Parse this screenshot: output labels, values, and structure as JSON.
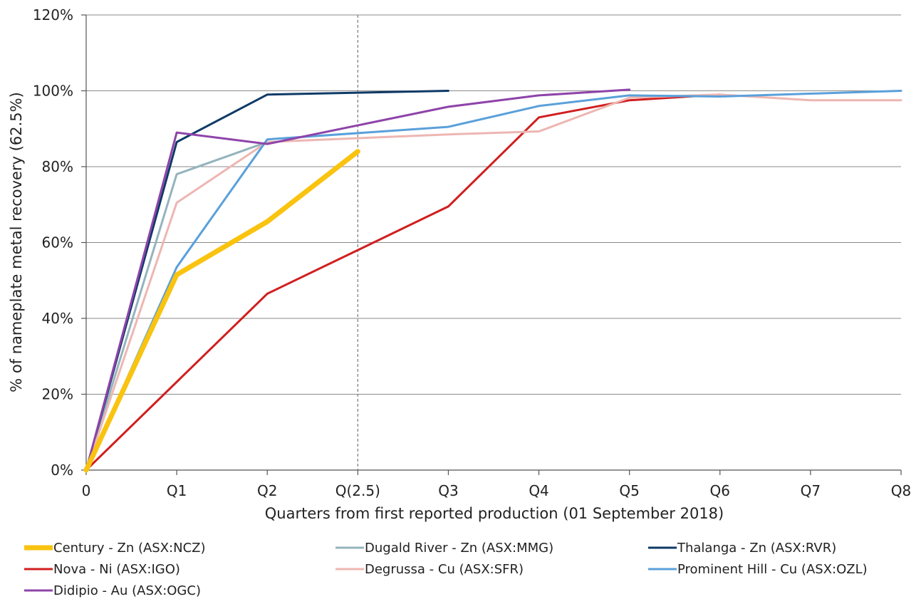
{
  "chart_data": {
    "type": "line",
    "xlabel": "Quarters from first reported production (01 September 2018)",
    "ylabel": "% of nameplate metal recovery (62.5%)",
    "ylim": [
      0,
      120
    ],
    "xlim": [
      0,
      9
    ],
    "y_ticks": [
      "0%",
      "20%",
      "40%",
      "60%",
      "80%",
      "100%",
      "120%"
    ],
    "y_tick_values": [
      0,
      20,
      40,
      60,
      80,
      100,
      120
    ],
    "x_ticks": [
      "0",
      "Q1",
      "Q2",
      "Q(2.5)",
      "Q3",
      "Q4",
      "Q5",
      "Q6",
      "Q7",
      "Q8"
    ],
    "x_tick_values": [
      0,
      1,
      2,
      3,
      4,
      5,
      6,
      7,
      8,
      9
    ],
    "grid": "horizontal",
    "reference_line": {
      "x": 3,
      "style": "dashed"
    },
    "legend_position": "bottom",
    "series": [
      {
        "name": "Century - Zn (ASX:NCZ)",
        "color": "#F9C30F",
        "width": 7,
        "points": [
          [
            0,
            0
          ],
          [
            1,
            51.5
          ],
          [
            2,
            65.5
          ],
          [
            3,
            84
          ]
        ]
      },
      {
        "name": "Dugald River - Zn (ASX:MMG)",
        "color": "#94B4BD",
        "width": 3,
        "points": [
          [
            0,
            0
          ],
          [
            1,
            78
          ],
          [
            2,
            86.5
          ]
        ]
      },
      {
        "name": "Thalanga - Zn (ASX:RVR)",
        "color": "#0D3A66",
        "width": 3,
        "points": [
          [
            0,
            0
          ],
          [
            1,
            86.5
          ],
          [
            2,
            99
          ],
          [
            4,
            100
          ]
        ]
      },
      {
        "name": "Nova - Ni (ASX:IGO)",
        "color": "#D01F1F",
        "width": 3,
        "points": [
          [
            0,
            0
          ],
          [
            2,
            46.5
          ],
          [
            4,
            69.5
          ],
          [
            5,
            93
          ],
          [
            6,
            97.5
          ],
          [
            7,
            99
          ]
        ]
      },
      {
        "name": "Degrussa - Cu (ASX:SFR)",
        "color": "#EDB6B2",
        "width": 3,
        "points": [
          [
            0,
            0
          ],
          [
            1,
            70.5
          ],
          [
            2,
            86.5
          ],
          [
            4,
            88.5
          ],
          [
            5,
            89.3
          ],
          [
            6,
            98.2
          ],
          [
            7,
            99
          ],
          [
            8,
            97.5
          ],
          [
            9,
            97.5
          ]
        ]
      },
      {
        "name": "Prominent Hill - Cu (ASX:OZL)",
        "color": "#5AA0DA",
        "width": 3,
        "points": [
          [
            0,
            0
          ],
          [
            1,
            53.5
          ],
          [
            2,
            87.2
          ],
          [
            4,
            90.5
          ],
          [
            5,
            96
          ],
          [
            6,
            98.8
          ],
          [
            7,
            98.5
          ],
          [
            9,
            100
          ]
        ]
      },
      {
        "name": "Didipio - Au (ASX:OGC)",
        "color": "#8E44AA",
        "width": 3,
        "points": [
          [
            0,
            0
          ],
          [
            1,
            89
          ],
          [
            2,
            86
          ],
          [
            4,
            95.8
          ],
          [
            5,
            98.8
          ],
          [
            6,
            100.3
          ]
        ]
      }
    ]
  }
}
